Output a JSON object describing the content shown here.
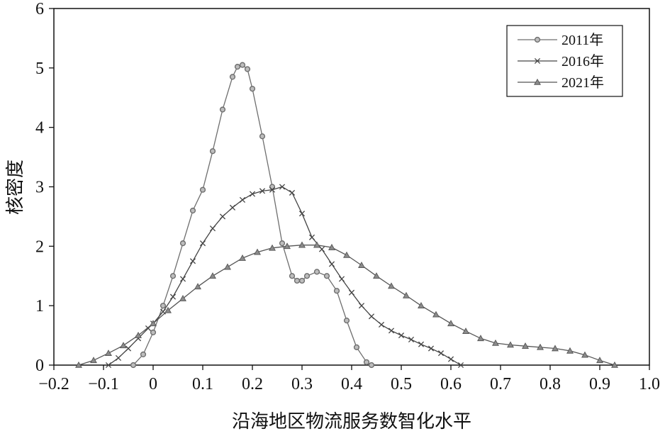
{
  "chart_data": {
    "type": "line",
    "xlabel": "沿海地区物流服务数智化水平",
    "ylabel": "核密度",
    "xlim": [
      -0.2,
      1.0
    ],
    "ylim": [
      0,
      6
    ],
    "x_ticks": [
      "−0.2",
      "−0.1",
      "0",
      "0.1",
      "0.2",
      "0.3",
      "0.4",
      "0.5",
      "0.6",
      "0.7",
      "0.8",
      "0.9",
      "1.0"
    ],
    "y_ticks": [
      "0",
      "1",
      "2",
      "3",
      "4",
      "5",
      "6"
    ],
    "grid": false,
    "legend_position": "top-right",
    "series": [
      {
        "name": "2011年",
        "marker": "circle",
        "color": "#6e6e6e",
        "x": [
          -0.04,
          -0.02,
          0.0,
          0.02,
          0.04,
          0.06,
          0.08,
          0.1,
          0.12,
          0.14,
          0.16,
          0.17,
          0.18,
          0.19,
          0.2,
          0.22,
          0.24,
          0.26,
          0.28,
          0.29,
          0.3,
          0.31,
          0.33,
          0.35,
          0.37,
          0.39,
          0.41,
          0.43,
          0.44
        ],
        "y": [
          0.0,
          0.18,
          0.55,
          1.0,
          1.5,
          2.05,
          2.6,
          2.95,
          3.6,
          4.3,
          4.85,
          5.02,
          5.05,
          4.98,
          4.65,
          3.85,
          3.0,
          2.05,
          1.5,
          1.42,
          1.42,
          1.5,
          1.57,
          1.5,
          1.25,
          0.75,
          0.3,
          0.05,
          0.0
        ]
      },
      {
        "name": "2016年",
        "marker": "x",
        "color": "#444444",
        "x": [
          -0.09,
          -0.07,
          -0.05,
          -0.03,
          -0.01,
          0.0,
          0.02,
          0.04,
          0.06,
          0.08,
          0.1,
          0.12,
          0.14,
          0.16,
          0.18,
          0.2,
          0.22,
          0.24,
          0.26,
          0.28,
          0.3,
          0.32,
          0.34,
          0.36,
          0.38,
          0.4,
          0.42,
          0.44,
          0.46,
          0.48,
          0.5,
          0.52,
          0.54,
          0.56,
          0.58,
          0.6,
          0.62
        ],
        "y": [
          0.0,
          0.12,
          0.28,
          0.45,
          0.62,
          0.7,
          0.9,
          1.15,
          1.45,
          1.75,
          2.05,
          2.3,
          2.5,
          2.65,
          2.78,
          2.88,
          2.93,
          2.95,
          3.0,
          2.9,
          2.55,
          2.15,
          1.95,
          1.7,
          1.45,
          1.22,
          1.0,
          0.82,
          0.68,
          0.58,
          0.5,
          0.43,
          0.35,
          0.28,
          0.2,
          0.1,
          0.0
        ]
      },
      {
        "name": "2021年",
        "marker": "triangle",
        "color": "#555555",
        "x": [
          -0.15,
          -0.12,
          -0.09,
          -0.06,
          -0.03,
          0.0,
          0.03,
          0.06,
          0.09,
          0.12,
          0.15,
          0.18,
          0.21,
          0.24,
          0.27,
          0.3,
          0.33,
          0.36,
          0.39,
          0.42,
          0.45,
          0.48,
          0.51,
          0.54,
          0.57,
          0.6,
          0.63,
          0.66,
          0.69,
          0.72,
          0.75,
          0.78,
          0.81,
          0.84,
          0.87,
          0.9,
          0.93
        ],
        "y": [
          0.0,
          0.08,
          0.2,
          0.33,
          0.5,
          0.7,
          0.92,
          1.12,
          1.32,
          1.5,
          1.65,
          1.8,
          1.9,
          1.97,
          2.0,
          2.02,
          2.02,
          1.98,
          1.85,
          1.68,
          1.5,
          1.33,
          1.17,
          1.0,
          0.85,
          0.7,
          0.57,
          0.45,
          0.37,
          0.34,
          0.32,
          0.3,
          0.28,
          0.24,
          0.17,
          0.08,
          0.0
        ]
      }
    ]
  }
}
